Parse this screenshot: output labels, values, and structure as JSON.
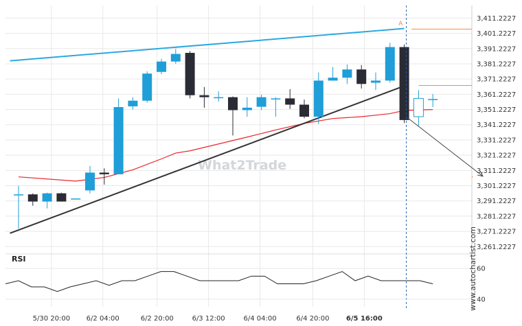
{
  "chart_data": {
    "type": "candlestick",
    "price_axis": {
      "ticks": [
        "3,411.2227",
        "3,401.2227",
        "3,391.2227",
        "3,381.2227",
        "3,371.2227",
        "3,361.2227",
        "3,351.2227",
        "3,341.2227",
        "3,331.2227",
        "3,321.2227",
        "3,311.2227",
        "3,301.2227",
        "3,291.2227",
        "3,281.2227",
        "3,271.2227",
        "3,261.2227"
      ],
      "tick_values": [
        3411.2227,
        3401.2227,
        3391.2227,
        3381.2227,
        3371.2227,
        3361.2227,
        3351.2227,
        3341.2227,
        3331.2227,
        3321.2227,
        3311.2227,
        3301.2227,
        3291.2227,
        3281.2227,
        3271.2227,
        3261.2227
      ],
      "ylim": [
        3259.1,
        3419.5
      ]
    },
    "time_axis": {
      "labels": [
        "5/30 20:00",
        "6/2 04:00",
        "6/2 20:00",
        "6/3 12:00",
        "6/4 04:00",
        "6/4 20:00",
        "6/5 16:00"
      ],
      "label_candle_index": [
        2.3,
        5.9,
        9.7,
        13.3,
        16.9,
        20.6,
        24.2
      ],
      "highlight_label_index": 6
    },
    "candles": [
      {
        "o": 3295.5,
        "h": 3301.1,
        "l": 3273.0,
        "c": 3295.5
      },
      {
        "o": 3295.5,
        "h": 3296.2,
        "l": 3288.0,
        "c": 3290.8
      },
      {
        "o": 3290.8,
        "h": 3296.6,
        "l": 3286.3,
        "c": 3296.2
      },
      {
        "o": 3296.2,
        "h": 3296.6,
        "l": 3290.8,
        "c": 3290.8
      },
      {
        "o": 3292.8,
        "h": 3292.8,
        "l": 3292.8,
        "c": 3292.8
      },
      {
        "o": 3298.1,
        "h": 3314.1,
        "l": 3296.2,
        "c": 3309.8
      },
      {
        "o": 3309.8,
        "h": 3312.6,
        "l": 3301.9,
        "c": 3308.7
      },
      {
        "o": 3308.7,
        "h": 3358.5,
        "l": 3308.7,
        "c": 3352.8
      },
      {
        "o": 3353.3,
        "h": 3359.3,
        "l": 3351.2,
        "c": 3357.0
      },
      {
        "o": 3357.0,
        "h": 3376.3,
        "l": 3355.7,
        "c": 3374.8
      },
      {
        "o": 3375.9,
        "h": 3384.5,
        "l": 3374.4,
        "c": 3382.7
      },
      {
        "o": 3382.7,
        "h": 3390.9,
        "l": 3381.2,
        "c": 3387.7
      },
      {
        "o": 3388.4,
        "h": 3389.6,
        "l": 3358.5,
        "c": 3360.6
      },
      {
        "o": 3360.6,
        "h": 3366.0,
        "l": 3352.4,
        "c": 3359.3
      },
      {
        "o": 3359.3,
        "h": 3363.1,
        "l": 3356.4,
        "c": 3359.3
      },
      {
        "o": 3359.3,
        "h": 3359.8,
        "l": 3334.2,
        "c": 3350.8
      },
      {
        "o": 3350.8,
        "h": 3359.3,
        "l": 3346.5,
        "c": 3352.4
      },
      {
        "o": 3353.0,
        "h": 3361.0,
        "l": 3350.8,
        "c": 3359.3
      },
      {
        "o": 3358.5,
        "h": 3359.3,
        "l": 3346.5,
        "c": 3358.5
      },
      {
        "o": 3358.5,
        "h": 3364.6,
        "l": 3351.6,
        "c": 3354.4
      },
      {
        "o": 3354.4,
        "h": 3357.8,
        "l": 3345.5,
        "c": 3346.5
      },
      {
        "o": 3346.5,
        "h": 3375.5,
        "l": 3341.7,
        "c": 3370.2
      },
      {
        "o": 3370.2,
        "h": 3379.1,
        "l": 3370.2,
        "c": 3372.1
      },
      {
        "o": 3372.1,
        "h": 3380.8,
        "l": 3368.0,
        "c": 3377.5
      },
      {
        "o": 3377.5,
        "h": 3380.4,
        "l": 3365.0,
        "c": 3368.0
      },
      {
        "o": 3368.8,
        "h": 3375.5,
        "l": 3364.0,
        "c": 3370.2
      },
      {
        "o": 3370.2,
        "h": 3395.0,
        "l": 3368.8,
        "c": 3392.2
      },
      {
        "o": 3392.2,
        "h": 3393.9,
        "l": 3342.3,
        "c": 3344.3
      },
      {
        "o": 3346.5,
        "h": 3364.0,
        "l": 3340.5,
        "c": 3358.5
      },
      {
        "o": 3357.8,
        "h": 3361.4,
        "l": 3352.8,
        "c": 3358.1
      }
    ],
    "candle_colors": {
      "up": "#1f9ed8",
      "down": "#2b2b35"
    },
    "moving_average": {
      "color": "#e8242b",
      "points": [
        [
          0,
          3307
        ],
        [
          4,
          3304.2
        ],
        [
          6,
          3306.6
        ],
        [
          8,
          3311.6
        ],
        [
          10,
          3318.8
        ],
        [
          11,
          3322.6
        ],
        [
          12,
          3324.1
        ],
        [
          16,
          3333.1
        ],
        [
          18,
          3337.8
        ],
        [
          20,
          3342.1
        ],
        [
          22,
          3345.3
        ],
        [
          24,
          3346.5
        ],
        [
          25,
          3347.5
        ],
        [
          26,
          3348.5
        ],
        [
          27,
          3350.6
        ],
        [
          28,
          3350.9
        ],
        [
          29,
          3351.2
        ]
      ]
    },
    "trend_lines": {
      "color_upper": "#2aa9e0",
      "color_lower": "#333333",
      "upper": [
        [
          -0.6,
          3383.2
        ],
        [
          27.0,
          3404.4
        ]
      ],
      "lower": [
        [
          -0.6,
          3270.0
        ],
        [
          27.0,
          3366.7
        ]
      ]
    },
    "levels": {
      "color": "#f08a4b",
      "top": 3404.0,
      "mid": 3367.0,
      "target": 3307.0,
      "top_from": 27.5,
      "mid_from": 28.0,
      "target_from": 31.8
    },
    "signal": {
      "vline_candle_index": 27,
      "arrow_from": [
        27.2,
        3346.0
      ],
      "arrow_to": [
        32.5,
        3307.4
      ],
      "marker_text": "A",
      "marker_price": 3406.5,
      "marker_candle_index": 26.6
    },
    "rsi": {
      "title": "RSI",
      "ticks": [
        "60",
        "40"
      ],
      "tick_values": [
        60,
        40
      ],
      "ylim": [
        35,
        65
      ],
      "levels_color": "#999999",
      "values": [
        50,
        52,
        48,
        48,
        45,
        48,
        50,
        52,
        49,
        52,
        52,
        55,
        58,
        58,
        55,
        52,
        52,
        52,
        52,
        55,
        55,
        50,
        50,
        50,
        52,
        55,
        58,
        52,
        55,
        52,
        52,
        52,
        52,
        50
      ]
    },
    "watermark": "What2Trade",
    "side_text": "www.autochartist.com"
  }
}
